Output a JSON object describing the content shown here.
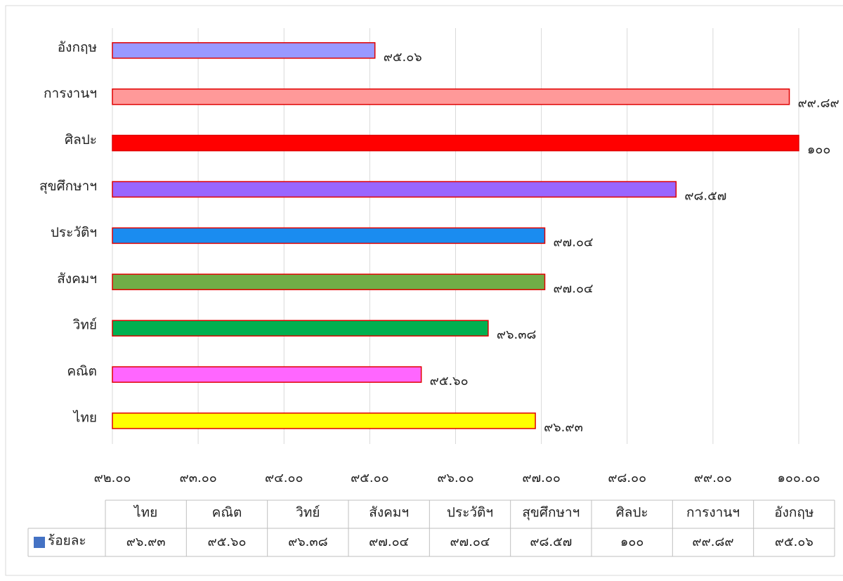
{
  "chart_data": {
    "type": "bar",
    "orientation": "horizontal",
    "categories": [
      "ไทย",
      "คณิต",
      "วิทย์",
      "สังคมฯ",
      "ประวัติฯ",
      "สุขศึกษาฯ",
      "ศิลปะ",
      "การงานฯ",
      "อังกฤษ"
    ],
    "series": [
      {
        "name": "ร้อยละ",
        "color": "#4472c4",
        "bar_colors": [
          "#ffff00",
          "#ff66ff",
          "#00b050",
          "#70ad47",
          "#1a8cf0",
          "#9966ff",
          "#ff0000",
          "#ff9999",
          "#9999ff"
        ],
        "edge_color": "#e00000",
        "values": [
          96.93,
          95.6,
          96.38,
          97.04,
          97.04,
          98.57,
          100,
          99.89,
          95.06
        ],
        "value_labels": [
          "๙๖.๙๓",
          "๙๕.๖๐",
          "๙๖.๓๘",
          "๙๗.๐๔",
          "๙๗.๐๔",
          "๙๘.๕๗",
          "๑๐๐",
          "๙๙.๘๙",
          "๙๕.๐๖"
        ]
      }
    ],
    "xlim": [
      92,
      100
    ],
    "xticks": [
      {
        "value": 92,
        "label": "๙๒.๐๐"
      },
      {
        "value": 93,
        "label": "๙๓.๐๐"
      },
      {
        "value": 94,
        "label": "๙๔.๐๐"
      },
      {
        "value": 95,
        "label": "๙๕.๐๐"
      },
      {
        "value": 96,
        "label": "๙๖.๐๐"
      },
      {
        "value": 97,
        "label": "๙๗.๐๐"
      },
      {
        "value": 98,
        "label": "๙๘.๐๐"
      },
      {
        "value": 99,
        "label": "๙๙.๐๐"
      },
      {
        "value": 100,
        "label": "๑๐๐.๐๐"
      }
    ],
    "grid": true,
    "data_table": true
  }
}
